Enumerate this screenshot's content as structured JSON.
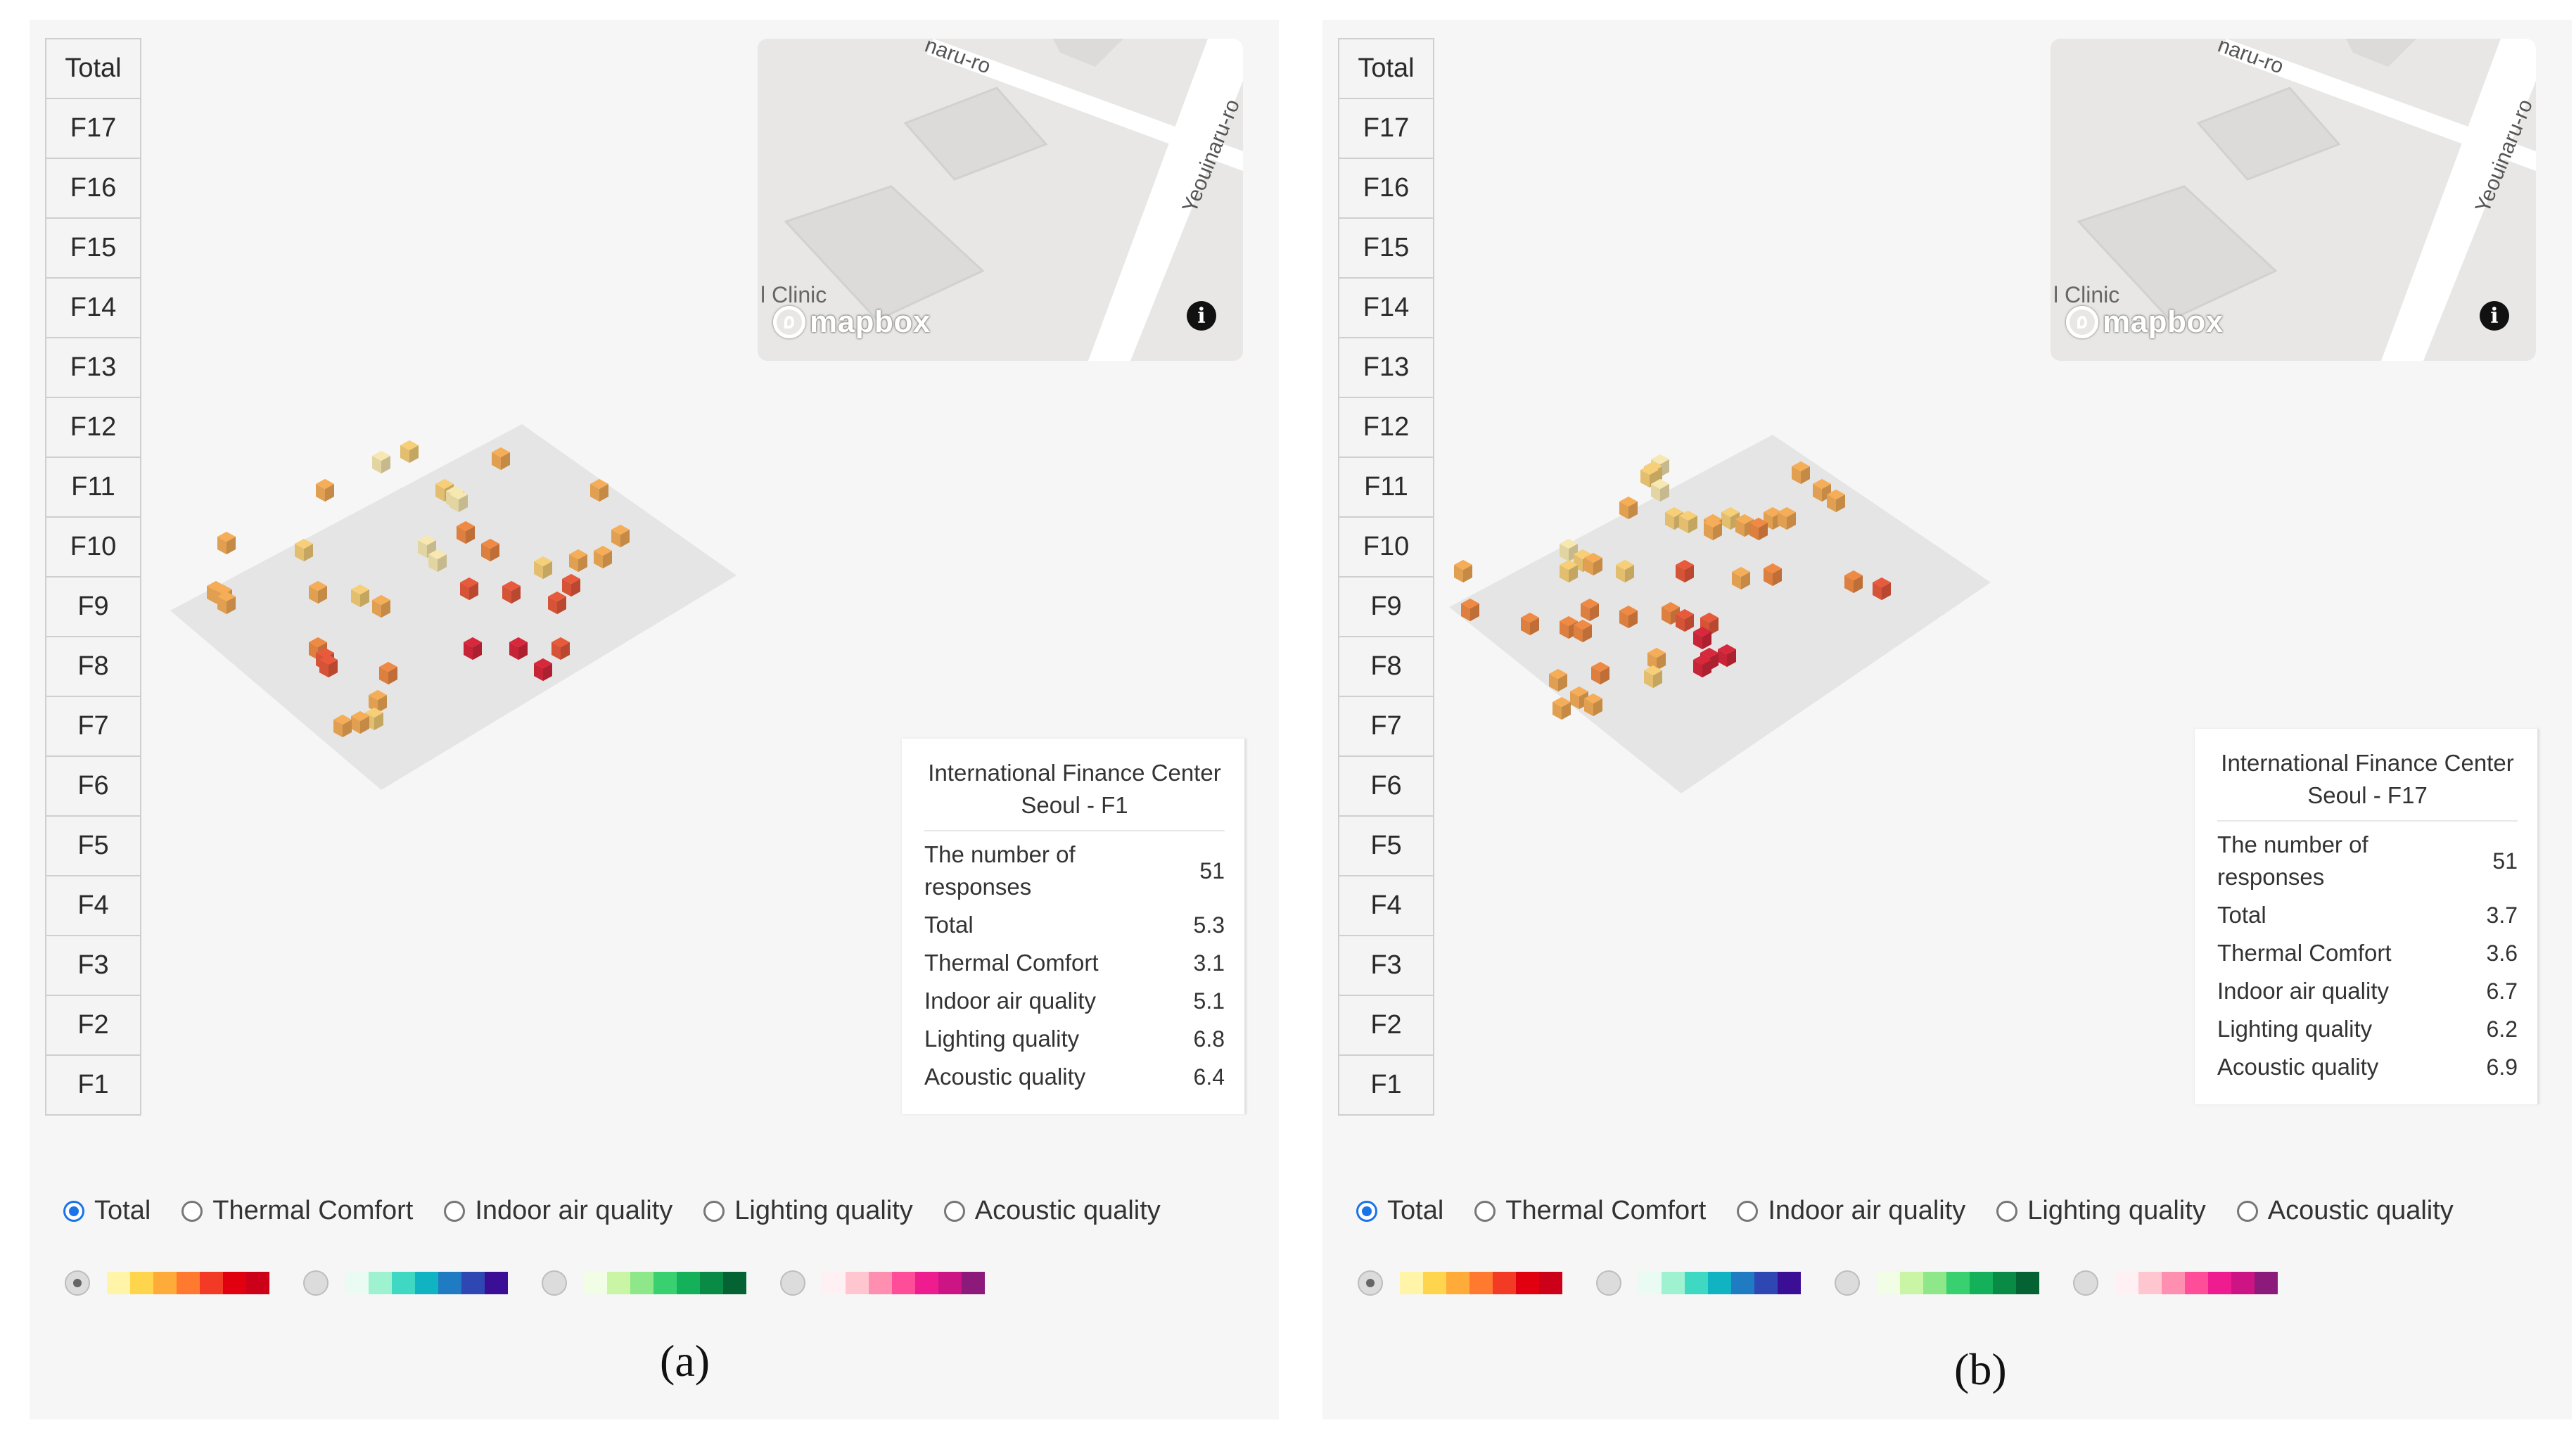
{
  "floors": [
    "Total",
    "F17",
    "F16",
    "F15",
    "F14",
    "F13",
    "F12",
    "F11",
    "F10",
    "F9",
    "F8",
    "F7",
    "F6",
    "F5",
    "F4",
    "F3",
    "F2",
    "F1"
  ],
  "map": {
    "clinic_label": "l Clinic",
    "street_top": "Yeouinaru-ro",
    "street_top_visible": "naru-ro",
    "street_side": "Yeouinaru-ro",
    "logo_text": "mapbox",
    "info_icon": "info-icon"
  },
  "panel_a": {
    "caption": "(a)",
    "card": {
      "title": "International Finance Center Seoul - F1",
      "rows": [
        {
          "label": "The number of responses",
          "value": "51"
        },
        {
          "label": "Total",
          "value": "5.3"
        },
        {
          "label": "Thermal Comfort",
          "value": "3.1"
        },
        {
          "label": "Indoor air quality",
          "value": "5.1"
        },
        {
          "label": "Lighting quality",
          "value": "6.8"
        },
        {
          "label": "Acoustic quality",
          "value": "6.4"
        }
      ]
    }
  },
  "panel_b": {
    "caption": "(b)",
    "card": {
      "title": "International Finance Center Seoul - F17",
      "rows": [
        {
          "label": "The number of responses",
          "value": "51"
        },
        {
          "label": "Total",
          "value": "3.7"
        },
        {
          "label": "Thermal Comfort",
          "value": "3.6"
        },
        {
          "label": "Indoor air quality",
          "value": "6.7"
        },
        {
          "label": "Lighting quality",
          "value": "6.2"
        },
        {
          "label": "Acoustic quality",
          "value": "6.9"
        }
      ]
    }
  },
  "radio_options": [
    "Total",
    "Thermal Comfort",
    "Indoor air quality",
    "Lighting quality",
    "Acoustic quality"
  ],
  "selected_radio": "Total",
  "palettes": [
    {
      "name": "red-palette",
      "selected": true,
      "colors": [
        "#fff4a8",
        "#ffd54d",
        "#ffab3a",
        "#ff7a2e",
        "#f23a25",
        "#e00010",
        "#cc0018"
      ]
    },
    {
      "name": "blue-palette",
      "selected": false,
      "colors": [
        "#e9fbf2",
        "#9ef2cf",
        "#3fd8c3",
        "#0fb3c2",
        "#1f7cc2",
        "#2f47b2",
        "#3a0f96"
      ]
    },
    {
      "name": "green-palette",
      "selected": false,
      "colors": [
        "#f2fde6",
        "#c9f5a5",
        "#8ee889",
        "#39d070",
        "#14b15a",
        "#098a45",
        "#056233"
      ]
    },
    {
      "name": "pink-palette",
      "selected": false,
      "colors": [
        "#fff0f3",
        "#ffc6d0",
        "#ff8fb0",
        "#ff4d9a",
        "#ee1c8e",
        "#cc1485",
        "#8c1a7a"
      ]
    }
  ]
}
